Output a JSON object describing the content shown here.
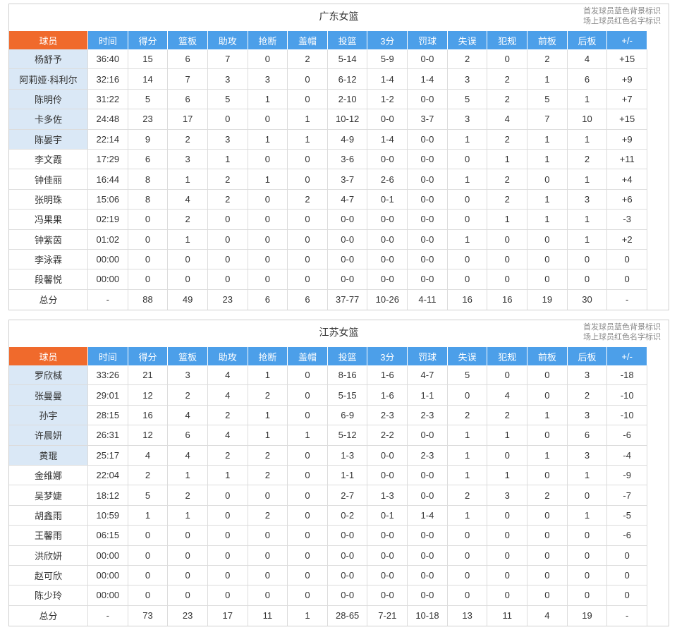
{
  "legend": {
    "starter_note": "首发球员蓝色背景标识",
    "oncourt_note": "场上球员红色名字标识"
  },
  "colors": {
    "header_player_bg": "#f06a2c",
    "header_bg": "#4c9fe9",
    "starter_bg": "#dae8f6"
  },
  "columns": [
    "球员",
    "时间",
    "得分",
    "篮板",
    "助攻",
    "抢断",
    "盖帽",
    "投篮",
    "3分",
    "罚球",
    "失误",
    "犯规",
    "前板",
    "后板",
    "+/-"
  ],
  "teams": [
    {
      "name": "广东女篮",
      "players": [
        {
          "name": "杨舒予",
          "starter": true,
          "stats": [
            "36:40",
            "15",
            "6",
            "7",
            "0",
            "2",
            "5-14",
            "5-9",
            "0-0",
            "2",
            "0",
            "2",
            "4",
            "+15"
          ]
        },
        {
          "name": "阿莉娅·科利尔",
          "starter": true,
          "stats": [
            "32:16",
            "14",
            "7",
            "3",
            "3",
            "0",
            "6-12",
            "1-4",
            "1-4",
            "3",
            "2",
            "1",
            "6",
            "+9"
          ]
        },
        {
          "name": "陈明伶",
          "starter": true,
          "stats": [
            "31:22",
            "5",
            "6",
            "5",
            "1",
            "0",
            "2-10",
            "1-2",
            "0-0",
            "5",
            "2",
            "5",
            "1",
            "+7"
          ]
        },
        {
          "name": "卡多佐",
          "starter": true,
          "stats": [
            "24:48",
            "23",
            "17",
            "0",
            "0",
            "1",
            "10-12",
            "0-0",
            "3-7",
            "3",
            "4",
            "7",
            "10",
            "+15"
          ]
        },
        {
          "name": "陈晏宇",
          "starter": true,
          "stats": [
            "22:14",
            "9",
            "2",
            "3",
            "1",
            "1",
            "4-9",
            "1-4",
            "0-0",
            "1",
            "2",
            "1",
            "1",
            "+9"
          ]
        },
        {
          "name": "李文霞",
          "starter": false,
          "stats": [
            "17:29",
            "6",
            "3",
            "1",
            "0",
            "0",
            "3-6",
            "0-0",
            "0-0",
            "0",
            "1",
            "1",
            "2",
            "+11"
          ]
        },
        {
          "name": "钟佳丽",
          "starter": false,
          "stats": [
            "16:44",
            "8",
            "1",
            "2",
            "1",
            "0",
            "3-7",
            "2-6",
            "0-0",
            "1",
            "2",
            "0",
            "1",
            "+4"
          ]
        },
        {
          "name": "张明珠",
          "starter": false,
          "stats": [
            "15:06",
            "8",
            "4",
            "2",
            "0",
            "2",
            "4-7",
            "0-1",
            "0-0",
            "0",
            "2",
            "1",
            "3",
            "+6"
          ]
        },
        {
          "name": "冯果果",
          "starter": false,
          "stats": [
            "02:19",
            "0",
            "2",
            "0",
            "0",
            "0",
            "0-0",
            "0-0",
            "0-0",
            "0",
            "1",
            "1",
            "1",
            "-3"
          ]
        },
        {
          "name": "钟紫茵",
          "starter": false,
          "stats": [
            "01:02",
            "0",
            "1",
            "0",
            "0",
            "0",
            "0-0",
            "0-0",
            "0-0",
            "1",
            "0",
            "0",
            "1",
            "+2"
          ]
        },
        {
          "name": "李泳霖",
          "starter": false,
          "stats": [
            "00:00",
            "0",
            "0",
            "0",
            "0",
            "0",
            "0-0",
            "0-0",
            "0-0",
            "0",
            "0",
            "0",
            "0",
            "0"
          ]
        },
        {
          "name": "段馨悦",
          "starter": false,
          "stats": [
            "00:00",
            "0",
            "0",
            "0",
            "0",
            "0",
            "0-0",
            "0-0",
            "0-0",
            "0",
            "0",
            "0",
            "0",
            "0"
          ]
        }
      ],
      "total": {
        "label": "总分",
        "stats": [
          "-",
          "88",
          "49",
          "23",
          "6",
          "6",
          "37-77",
          "10-26",
          "4-11",
          "16",
          "16",
          "19",
          "30",
          "-"
        ]
      }
    },
    {
      "name": "江苏女篮",
      "players": [
        {
          "name": "罗欣棫",
          "starter": true,
          "stats": [
            "33:26",
            "21",
            "3",
            "4",
            "1",
            "0",
            "8-16",
            "1-6",
            "4-7",
            "5",
            "0",
            "0",
            "3",
            "-18"
          ]
        },
        {
          "name": "张曼曼",
          "starter": true,
          "stats": [
            "29:01",
            "12",
            "2",
            "4",
            "2",
            "0",
            "5-15",
            "1-6",
            "1-1",
            "0",
            "4",
            "0",
            "2",
            "-10"
          ]
        },
        {
          "name": "孙宇",
          "starter": true,
          "stats": [
            "28:15",
            "16",
            "4",
            "2",
            "1",
            "0",
            "6-9",
            "2-3",
            "2-3",
            "2",
            "2",
            "1",
            "3",
            "-10"
          ]
        },
        {
          "name": "许晨妍",
          "starter": true,
          "stats": [
            "26:31",
            "12",
            "6",
            "4",
            "1",
            "1",
            "5-12",
            "2-2",
            "0-0",
            "1",
            "1",
            "0",
            "6",
            "-6"
          ]
        },
        {
          "name": "黄琨",
          "starter": true,
          "stats": [
            "25:17",
            "4",
            "4",
            "2",
            "2",
            "0",
            "1-3",
            "0-0",
            "2-3",
            "1",
            "0",
            "1",
            "3",
            "-4"
          ]
        },
        {
          "name": "金维娜",
          "starter": false,
          "stats": [
            "22:04",
            "2",
            "1",
            "1",
            "2",
            "0",
            "1-1",
            "0-0",
            "0-0",
            "1",
            "1",
            "0",
            "1",
            "-9"
          ]
        },
        {
          "name": "吴梦婕",
          "starter": false,
          "stats": [
            "18:12",
            "5",
            "2",
            "0",
            "0",
            "0",
            "2-7",
            "1-3",
            "0-0",
            "2",
            "3",
            "2",
            "0",
            "-7"
          ]
        },
        {
          "name": "胡鑫雨",
          "starter": false,
          "stats": [
            "10:59",
            "1",
            "1",
            "0",
            "2",
            "0",
            "0-2",
            "0-1",
            "1-4",
            "1",
            "0",
            "0",
            "1",
            "-5"
          ]
        },
        {
          "name": "王馨雨",
          "starter": false,
          "stats": [
            "06:15",
            "0",
            "0",
            "0",
            "0",
            "0",
            "0-0",
            "0-0",
            "0-0",
            "0",
            "0",
            "0",
            "0",
            "-6"
          ]
        },
        {
          "name": "洪欣妍",
          "starter": false,
          "stats": [
            "00:00",
            "0",
            "0",
            "0",
            "0",
            "0",
            "0-0",
            "0-0",
            "0-0",
            "0",
            "0",
            "0",
            "0",
            "0"
          ]
        },
        {
          "name": "赵可欣",
          "starter": false,
          "stats": [
            "00:00",
            "0",
            "0",
            "0",
            "0",
            "0",
            "0-0",
            "0-0",
            "0-0",
            "0",
            "0",
            "0",
            "0",
            "0"
          ]
        },
        {
          "name": "陈少玲",
          "starter": false,
          "stats": [
            "00:00",
            "0",
            "0",
            "0",
            "0",
            "0",
            "0-0",
            "0-0",
            "0-0",
            "0",
            "0",
            "0",
            "0",
            "0"
          ]
        }
      ],
      "total": {
        "label": "总分",
        "stats": [
          "-",
          "73",
          "23",
          "17",
          "11",
          "1",
          "28-65",
          "7-21",
          "10-18",
          "13",
          "11",
          "4",
          "19",
          "-"
        ]
      }
    }
  ]
}
